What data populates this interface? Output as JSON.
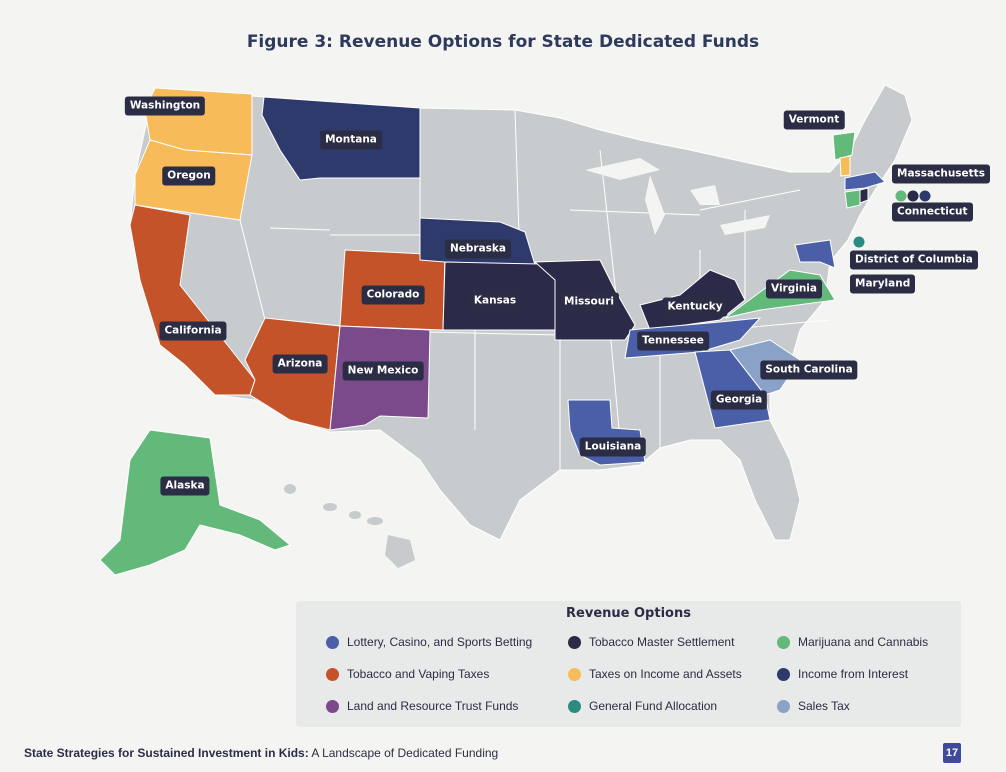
{
  "title": "Figure 3: Revenue Options for State Dedicated Funds",
  "colors": {
    "lottery": "#4a5fa8",
    "tobacco_settlement": "#2b2a48",
    "marijuana": "#62b97a",
    "tobacco_vaping": "#c4532a",
    "income_assets": "#f7bb5a",
    "interest": "#2d3a6b",
    "land_trust": "#7b4a8a",
    "general_fund": "#2a8b82",
    "sales_tax": "#8aa2c8",
    "other": "#c7cbce"
  },
  "map_data": {
    "states": [
      {
        "name": "Washington",
        "option": "Taxes on Income and Assets"
      },
      {
        "name": "Oregon",
        "option": "Taxes on Income and Assets"
      },
      {
        "name": "California",
        "option": "Tobacco and Vaping Taxes"
      },
      {
        "name": "Arizona",
        "option": "Tobacco and Vaping Taxes"
      },
      {
        "name": "Colorado",
        "option": "Tobacco and Vaping Taxes"
      },
      {
        "name": "New Mexico",
        "option": "Land and Resource Trust Funds"
      },
      {
        "name": "Montana",
        "option": "Income from Interest"
      },
      {
        "name": "Nebraska",
        "option": "Income from Interest"
      },
      {
        "name": "Kansas",
        "option": "Tobacco Master Settlement"
      },
      {
        "name": "Missouri",
        "option": "Tobacco Master Settlement"
      },
      {
        "name": "Kentucky",
        "option": "Tobacco Master Settlement"
      },
      {
        "name": "Tennessee",
        "option": "Lottery, Casino, and Sports Betting"
      },
      {
        "name": "Louisiana",
        "option": "Lottery, Casino, and Sports Betting"
      },
      {
        "name": "Georgia",
        "option": "Lottery, Casino, and Sports Betting"
      },
      {
        "name": "South Carolina",
        "option": "Sales Tax"
      },
      {
        "name": "Virginia",
        "option": "Marijuana and Cannabis"
      },
      {
        "name": "Maryland",
        "option": "Lottery, Casino, and Sports Betting"
      },
      {
        "name": "District of Columbia",
        "option": "General Fund Allocation"
      },
      {
        "name": "Massachusetts",
        "option": "Lottery, Casino, and Sports Betting"
      },
      {
        "name": "Connecticut",
        "option": "Marijuana and Cannabis"
      },
      {
        "name": "Vermont",
        "option": "Marijuana and Cannabis"
      },
      {
        "name": "Alaska",
        "option": "Marijuana and Cannabis"
      }
    ]
  },
  "legend": {
    "title": "Revenue Options",
    "items": [
      {
        "label": "Lottery, Casino, and Sports Betting",
        "color": "#4a5fa8"
      },
      {
        "label": "Tobacco Master Settlement",
        "color": "#2b2a48"
      },
      {
        "label": "Marijuana and Cannabis",
        "color": "#62b97a"
      },
      {
        "label": "Tobacco and Vaping Taxes",
        "color": "#c4532a"
      },
      {
        "label": "Taxes on Income and Assets",
        "color": "#f7bb5a"
      },
      {
        "label": "Income from Interest",
        "color": "#2d3a6b"
      },
      {
        "label": "Land and Resource Trust Funds",
        "color": "#7b4a8a"
      },
      {
        "label": "General Fund Allocation",
        "color": "#2a8b82"
      },
      {
        "label": "Sales Tax",
        "color": "#8aa2c8"
      }
    ]
  },
  "footer": {
    "bold": "State Strategies for Sustained Investment in Kids:",
    "rest": " A Landscape of Dedicated Funding"
  },
  "page_number": "17"
}
